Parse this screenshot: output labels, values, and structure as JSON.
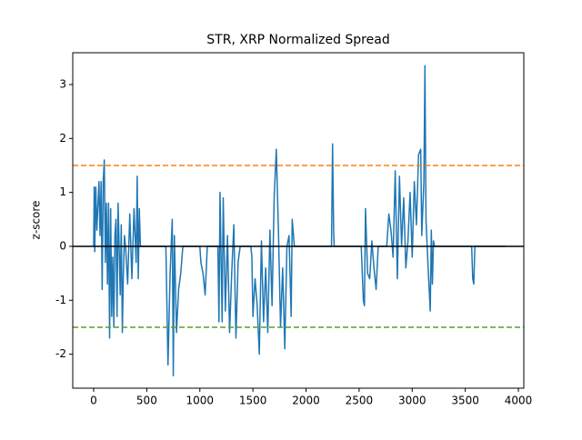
{
  "chart_data": {
    "type": "line",
    "title": "STR, XRP Normalized Spread",
    "ylabel": "z-score",
    "color": "#1f77b4",
    "x": [
      0,
      5,
      10,
      20,
      30,
      50,
      60,
      70,
      80,
      90,
      100,
      110,
      120,
      130,
      140,
      150,
      160,
      170,
      180,
      190,
      200,
      210,
      220,
      230,
      240,
      250,
      260,
      270,
      280,
      290,
      300,
      320,
      340,
      360,
      380,
      400,
      410,
      420,
      430,
      440,
      680,
      700,
      720,
      740,
      750,
      760,
      780,
      800,
      820,
      840,
      1000,
      1010,
      1030,
      1050,
      1070,
      1170,
      1180,
      1190,
      1210,
      1220,
      1240,
      1260,
      1280,
      1300,
      1320,
      1340,
      1360,
      1380,
      1480,
      1490,
      1500,
      1520,
      1540,
      1560,
      1580,
      1600,
      1620,
      1640,
      1660,
      1680,
      1700,
      1720,
      1740,
      1760,
      1780,
      1800,
      1820,
      1840,
      1860,
      1870,
      1890,
      2240,
      2250,
      2260,
      2265,
      2520,
      2540,
      2550,
      2560,
      2580,
      2600,
      2620,
      2640,
      2660,
      2680,
      2760,
      2780,
      2800,
      2820,
      2840,
      2860,
      2880,
      2900,
      2920,
      2940,
      2960,
      2980,
      3000,
      3020,
      3040,
      3060,
      3080,
      3090,
      3110,
      3120,
      3130,
      3150,
      3170,
      3180,
      3190,
      3200,
      3210,
      3560,
      3570,
      3580,
      3590,
      3880
    ],
    "values": [
      0,
      1.1,
      -0.1,
      1.1,
      0.3,
      1.2,
      0.2,
      1.2,
      -0.8,
      1.2,
      1.6,
      -0.3,
      0.8,
      -0.7,
      0.8,
      -1.7,
      0.7,
      -1.3,
      -0.2,
      -1.5,
      0.2,
      0.5,
      -1.3,
      0.8,
      0,
      -0.9,
      0.4,
      -1.6,
      -0.5,
      0.2,
      0,
      -0.7,
      0.6,
      -0.6,
      0.7,
      -0.3,
      1.3,
      -0.6,
      0.7,
      0,
      0,
      -2.2,
      -0.5,
      0.5,
      -2.4,
      0.2,
      -1.6,
      -0.8,
      -0.5,
      0,
      0,
      -0.3,
      -0.5,
      -0.9,
      0,
      0,
      -1.4,
      1.0,
      -1.4,
      0.9,
      -1.2,
      0.2,
      -1.6,
      -0.5,
      0.4,
      -1.7,
      -0.3,
      0,
      0,
      -0.2,
      -1.3,
      -0.6,
      -1.1,
      -2.0,
      0.1,
      -1.4,
      -0.4,
      -1.6,
      0.3,
      -1.1,
      0.9,
      1.8,
      0.3,
      -1.5,
      -0.4,
      -1.9,
      0,
      0.2,
      -1.3,
      0.5,
      0,
      0,
      1.9,
      0.3,
      0,
      0,
      -1.0,
      -1.1,
      0.7,
      -0.5,
      -0.6,
      0.1,
      -0.4,
      -0.8,
      0,
      0,
      0.6,
      0.3,
      -0.2,
      1.4,
      -0.6,
      1.3,
      0,
      0.9,
      -0.4,
      0.1,
      1.0,
      -0.2,
      1.2,
      0.4,
      1.7,
      1.8,
      0.2,
      1.2,
      3.35,
      0.5,
      -0.4,
      -1.2,
      0.3,
      -0.7,
      0.1,
      0,
      0,
      -0.6,
      -0.7,
      0,
      0
    ],
    "hlines": [
      {
        "value": 1.5,
        "color": "#ff7f0e",
        "dashed": true
      },
      {
        "value": -1.5,
        "color": "#5a9e2f",
        "dashed": true
      },
      {
        "value": 0,
        "color": "#000000",
        "dashed": false
      }
    ],
    "xlim": [
      -197,
      4051
    ],
    "ylim": [
      -2.63,
      3.59
    ],
    "xticks": [
      0,
      500,
      1000,
      1500,
      2000,
      2500,
      3000,
      3500,
      4000
    ],
    "yticks": [
      -2,
      -1,
      0,
      1,
      2,
      3
    ]
  }
}
